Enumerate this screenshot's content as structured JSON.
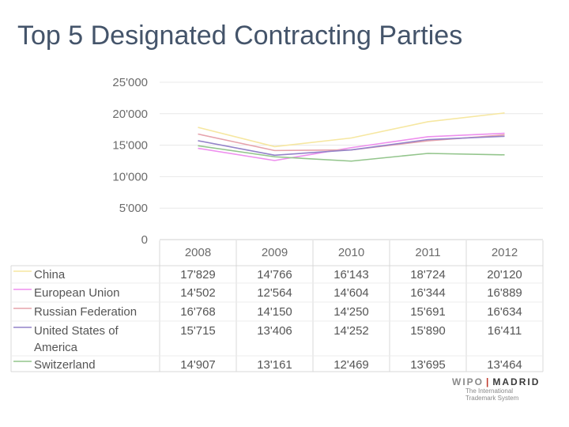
{
  "page": {
    "title": "Top 5 Designated Contracting Parties"
  },
  "chart_data": {
    "type": "line",
    "title": "Top 5 Designated Contracting Parties",
    "xlabel": "",
    "ylabel": "",
    "ylim": [
      0,
      25000
    ],
    "yticks": [
      0,
      5000,
      10000,
      15000,
      20000,
      25000
    ],
    "ytick_labels": [
      "0",
      "5'000",
      "10'000",
      "15'000",
      "20'000",
      "25'000"
    ],
    "categories": [
      "2008",
      "2009",
      "2010",
      "2011",
      "2012"
    ],
    "series": [
      {
        "name": "China",
        "color": "#f6e7a1",
        "values": [
          17829,
          14766,
          16143,
          18724,
          20120
        ],
        "labels": [
          "17'829",
          "14'766",
          "16'143",
          "18'724",
          "20'120"
        ]
      },
      {
        "name": "European Union",
        "color": "#ee8fee",
        "values": [
          14502,
          12564,
          14604,
          16344,
          16889
        ],
        "labels": [
          "14'502",
          "12'564",
          "14'604",
          "16'344",
          "16'889"
        ]
      },
      {
        "name": "Russian Federation",
        "color": "#e6a3ac",
        "values": [
          16768,
          14150,
          14250,
          15691,
          16634
        ],
        "labels": [
          "16'768",
          "14'150",
          "14'250",
          "15'691",
          "16'634"
        ]
      },
      {
        "name": "United States of America",
        "name_lines": [
          "United States of",
          "America"
        ],
        "color": "#9483c9",
        "values": [
          15715,
          13406,
          14252,
          15890,
          16411
        ],
        "labels": [
          "15'715",
          "13'406",
          "14'252",
          "15'890",
          "16'411"
        ]
      },
      {
        "name": "Switzerland",
        "color": "#93c58c",
        "values": [
          14907,
          13161,
          12469,
          13695,
          13464
        ],
        "labels": [
          "14'907",
          "13'161",
          "12'469",
          "13'695",
          "13'464"
        ]
      }
    ],
    "grid": true,
    "legend": "data-table"
  },
  "logo": {
    "wipo": "WIPO",
    "separator": "|",
    "madrid": "MADRID",
    "subtitle_1": "The International",
    "subtitle_2": "Trademark System"
  }
}
